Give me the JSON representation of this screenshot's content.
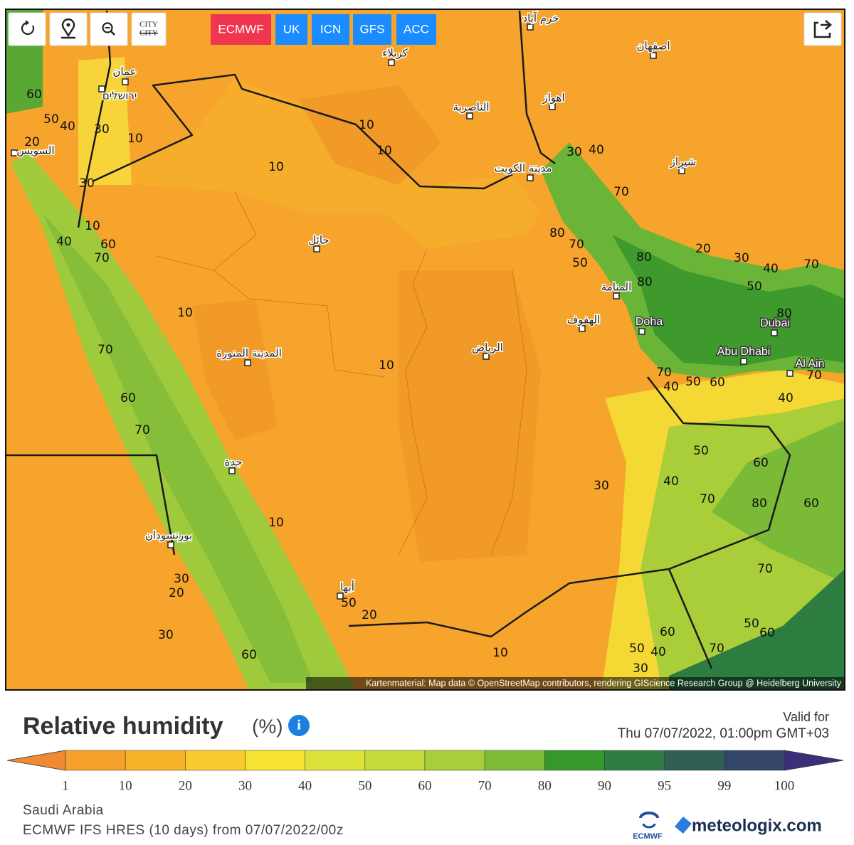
{
  "toolbar": {
    "city_toggle": [
      "CITY",
      "CITY"
    ]
  },
  "models": {
    "names": [
      "ECMWF",
      "UK",
      "ICN",
      "GFS",
      "ACC"
    ],
    "active": 0
  },
  "map": {
    "cities": [
      "خرم آباد",
      "كربلاء",
      "اصفهان",
      "عمان",
      "ירושלים",
      "اهواز",
      "الناصرية",
      "السويس",
      "شيراز",
      "مدينة الكويت",
      "حائل",
      "المنامة",
      "الهفوف",
      "Doha",
      "Dubai",
      "الرياض",
      "Abu Dhabi",
      "المدينة المنورة",
      "Al Ain",
      "جدة",
      "بورتسودان",
      "أبها"
    ],
    "contour_labels": [
      10,
      10,
      10,
      10,
      10,
      10,
      10,
      10,
      10,
      60,
      50,
      40,
      30,
      20,
      30,
      40,
      60,
      70,
      70,
      60,
      70,
      20,
      30,
      30,
      60,
      50,
      20,
      30,
      40,
      70,
      80,
      70,
      50,
      80,
      80,
      20,
      30,
      40,
      50,
      70,
      80,
      70,
      40,
      50,
      60,
      40,
      70,
      50,
      60,
      40,
      70,
      80,
      60,
      30,
      70,
      60,
      50,
      60,
      50,
      40,
      30,
      70
    ],
    "attribution": "Kartenmaterial: Map data © OpenStreetMap contributors, rendering GIScience Research Group @ Heidelberg University"
  },
  "legend": {
    "title": "Relative humidity",
    "unit": "(%)",
    "valid_label": "Valid for",
    "valid_time": "Thu 07/07/2022, 01:00pm GMT+03",
    "ticks": [
      1,
      10,
      20,
      30,
      40,
      50,
      60,
      70,
      80,
      90,
      95,
      99,
      100
    ],
    "colors": [
      "#f08a30",
      "#f5a02a",
      "#f7b22a",
      "#f9c92e",
      "#f7e333",
      "#dbe23a",
      "#c4da3a",
      "#a8ce3a",
      "#7ebc38",
      "#36972b",
      "#2f7d45",
      "#2f5f55",
      "#34456a",
      "#3b2e7a"
    ]
  },
  "footer": {
    "region": "Saudi Arabia",
    "model_run": "ECMWF IFS HRES (10 days) from 07/07/2022/00z",
    "logo_small": "ECMWF",
    "logo_brand": "meteologix.com"
  }
}
